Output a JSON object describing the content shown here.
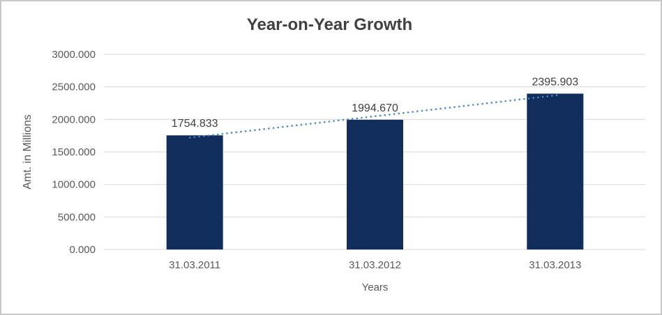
{
  "chart_data": {
    "type": "bar",
    "title": "Year-on-Year Growth",
    "categories": [
      "31.03.2011",
      "31.03.2012",
      "31.03.2013"
    ],
    "values": [
      1754.833,
      1994.67,
      2395.903
    ],
    "data_labels": [
      "1754.833",
      "1994.670",
      "2395.903"
    ],
    "xlabel": "Years",
    "ylabel": "Amt. in Millions",
    "ylim": [
      0,
      3000
    ],
    "ytick_step": 500,
    "ytick_labels": [
      "0.000",
      "500.000",
      "1000.000",
      "1500.000",
      "2000.000",
      "2500.000",
      "3000.000"
    ],
    "grid": true,
    "legend": "none",
    "trendline": {
      "type": "linear",
      "style": "dotted",
      "color": "#4E86C8"
    },
    "colors": {
      "bar": "#102D5C",
      "gridline": "#D9D9D9",
      "tick_text": "#595959",
      "data_label_text": "#404040",
      "title_text": "#404040",
      "figure_border": "#C9C9C9"
    }
  }
}
